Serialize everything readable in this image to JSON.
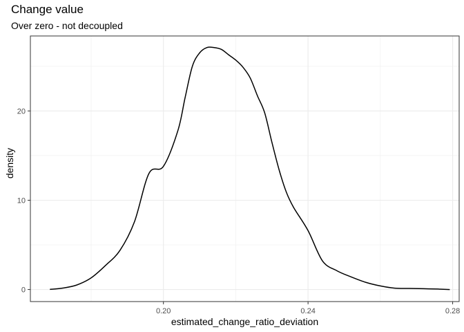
{
  "chart_data": {
    "type": "line",
    "title": "Change value",
    "subtitle": "Over zero - not decoupled",
    "xlabel": "estimated_change_ratio_deviation",
    "ylabel": "density",
    "xlim": [
      0.1632,
      0.2818
    ],
    "ylim": [
      -1.35,
      28.4
    ],
    "xticks": [
      0.2,
      0.24,
      0.28
    ],
    "xtick_labels": [
      "0.20",
      "0.24",
      "0.28"
    ],
    "yticks": [
      0,
      10,
      20
    ],
    "ytick_labels": [
      "0",
      "10",
      "20"
    ],
    "grid": true,
    "series": [
      {
        "x": [
          0.1686,
          0.172,
          0.176,
          0.18,
          0.184,
          0.188,
          0.192,
          0.196,
          0.2,
          0.204,
          0.206,
          0.208,
          0.21,
          0.212,
          0.214,
          0.216,
          0.218,
          0.22,
          0.222,
          0.224,
          0.226,
          0.228,
          0.23,
          0.232,
          0.234,
          0.236,
          0.24,
          0.244,
          0.248,
          0.252,
          0.256,
          0.26,
          0.264,
          0.268,
          0.272,
          0.276,
          0.2792
        ],
        "y": [
          0.02,
          0.15,
          0.5,
          1.3,
          2.7,
          4.4,
          7.6,
          13.0,
          13.8,
          17.8,
          21.5,
          25.0,
          26.5,
          27.1,
          27.1,
          26.9,
          26.3,
          25.7,
          24.9,
          23.7,
          21.7,
          19.8,
          16.5,
          13.4,
          10.9,
          9.2,
          6.6,
          3.2,
          2.1,
          1.4,
          0.8,
          0.4,
          0.15,
          0.12,
          0.09,
          0.05,
          0.0
        ]
      }
    ]
  }
}
